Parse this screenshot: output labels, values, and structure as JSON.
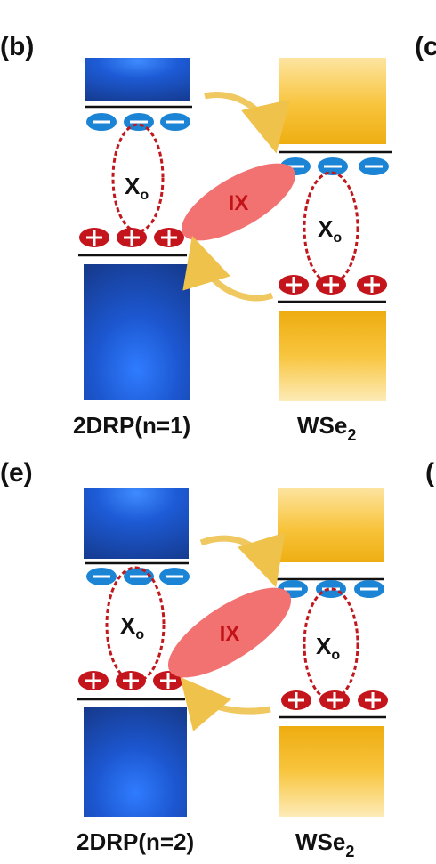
{
  "panels": [
    {
      "id": "b",
      "letter": "(b)",
      "next_letter_fragment": "(c",
      "left_material": "2DRP(n=1)",
      "right_material_base": "WSe",
      "right_material_sub": "2",
      "exciton_left": "X",
      "exciton_right": "X",
      "exciton_sub": "o",
      "interlayer_exciton": "IX"
    },
    {
      "id": "e",
      "letter": "(e)",
      "next_letter_fragment": "(",
      "left_material": "2DRP(n=2)",
      "right_material_base": "WSe",
      "right_material_sub": "2",
      "exciton_left": "X",
      "exciton_right": "X",
      "exciton_sub": "o",
      "interlayer_exciton": "IX"
    }
  ],
  "colors": {
    "perovskite_blue": "#1f5fd6",
    "wse2_yellow": "#f2b614",
    "electron_blue": "#1c84d4",
    "hole_red": "#c4141c",
    "ix_ellipse": "#f27272",
    "arrow_yellow": "#f0c860",
    "exciton_ring": "#c0181c"
  }
}
